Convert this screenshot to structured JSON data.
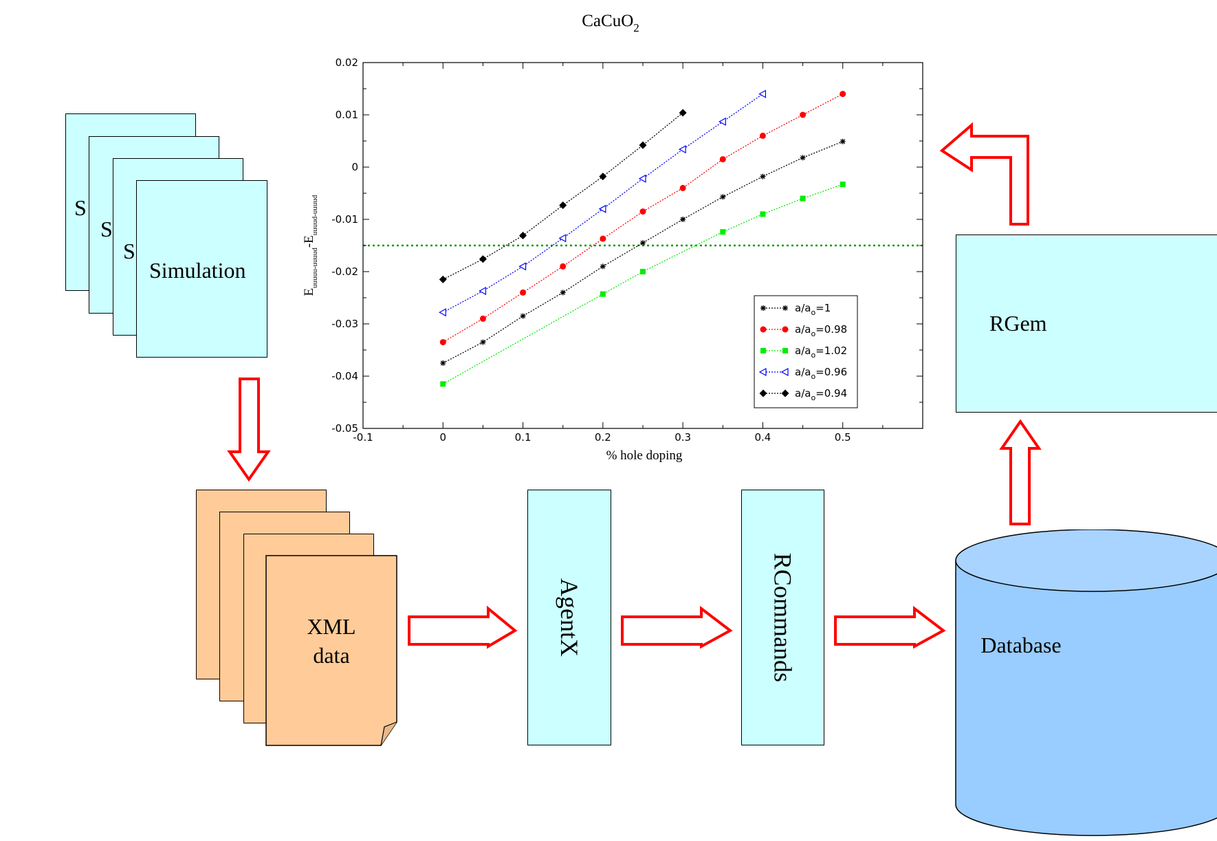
{
  "simulation": {
    "stack_labels": [
      "S",
      "S",
      "S"
    ],
    "label": "Simulation"
  },
  "xml": {
    "line1": "XML",
    "line2": "data"
  },
  "agentx": {
    "label": "AgentX"
  },
  "rcommands": {
    "label": "RCommands"
  },
  "database": {
    "label": "Database"
  },
  "rgem": {
    "label": "RGem"
  },
  "colors": {
    "arrow": "#ff0000",
    "box_fill": "#ccffff",
    "doc_fill": "#ffcc99",
    "db_fill": "#99ccff"
  },
  "chart_data": {
    "type": "line",
    "title": "CaCuO2",
    "title_main": "CaCuO",
    "title_sub": "2",
    "xlabel": "% hole doping",
    "ylabel_main": "E",
    "ylabel_sub1": "uuuuu-uuuud",
    "ylabel_mid": "-E",
    "ylabel_sub2": "uuuud-uuuud",
    "xlim": [
      -0.1,
      0.6
    ],
    "ylim": [
      -0.05,
      0.02
    ],
    "xticks": [
      -0.1,
      0,
      0.1,
      0.2,
      0.3,
      0.4,
      0.5
    ],
    "xtick_labels": [
      "-0.1",
      "0",
      "0.1",
      "0.2",
      "0.3",
      "0.4",
      "0.5"
    ],
    "yticks": [
      -0.05,
      -0.04,
      -0.03,
      -0.02,
      -0.01,
      0,
      0.01,
      0.02
    ],
    "ytick_labels": [
      "-0.05",
      "-0.04",
      "-0.03",
      "-0.02",
      "-0.01",
      "0",
      "0.01",
      "0.02"
    ],
    "reference_line": {
      "y": -0.015,
      "color": "#009900"
    },
    "legend_position": "lower-right",
    "series": [
      {
        "name_main": "a/a",
        "name_sub": "o",
        "name_rest": "=1",
        "color": "#000000",
        "marker": "star",
        "x": [
          0,
          0.05,
          0.1,
          0.15,
          0.2,
          0.25,
          0.3,
          0.35,
          0.4,
          0.45,
          0.5
        ],
        "y": [
          -0.0375,
          -0.0335,
          -0.0285,
          -0.024,
          -0.019,
          -0.0145,
          -0.01,
          -0.0057,
          -0.0018,
          0.0018,
          0.0049
        ]
      },
      {
        "name_main": "a/a",
        "name_sub": "o",
        "name_rest": "=0.98",
        "color": "#ff0000",
        "marker": "circle",
        "x": [
          0,
          0.05,
          0.1,
          0.15,
          0.2,
          0.25,
          0.3,
          0.35,
          0.4,
          0.45,
          0.5
        ],
        "y": [
          -0.0335,
          -0.029,
          -0.024,
          -0.019,
          -0.0137,
          -0.0085,
          -0.004,
          0.0015,
          0.006,
          0.01,
          0.014
        ]
      },
      {
        "name_main": "a/a",
        "name_sub": "o",
        "name_rest": "=1.02",
        "color": "#00ee00",
        "marker": "square",
        "x": [
          0,
          0.2,
          0.25,
          0.35,
          0.4,
          0.45,
          0.5
        ],
        "y": [
          -0.0415,
          -0.0243,
          -0.02,
          -0.0124,
          -0.009,
          -0.006,
          -0.0033
        ]
      },
      {
        "name_main": "a/a",
        "name_sub": "o",
        "name_rest": "=0.96",
        "color": "#0000ff",
        "marker": "triangle",
        "x": [
          0,
          0.05,
          0.1,
          0.15,
          0.2,
          0.25,
          0.3,
          0.35,
          0.4
        ],
        "y": [
          -0.0278,
          -0.0237,
          -0.019,
          -0.0136,
          -0.008,
          -0.0022,
          0.0034,
          0.0087,
          0.014
        ]
      },
      {
        "name_main": "a/a",
        "name_sub": "o",
        "name_rest": "=0.94",
        "color": "#000000",
        "marker": "diamond",
        "x": [
          0,
          0.05,
          0.1,
          0.15,
          0.2,
          0.25,
          0.3
        ],
        "y": [
          -0.0215,
          -0.0176,
          -0.0131,
          -0.0073,
          -0.0018,
          0.0042,
          0.0104
        ]
      }
    ]
  }
}
